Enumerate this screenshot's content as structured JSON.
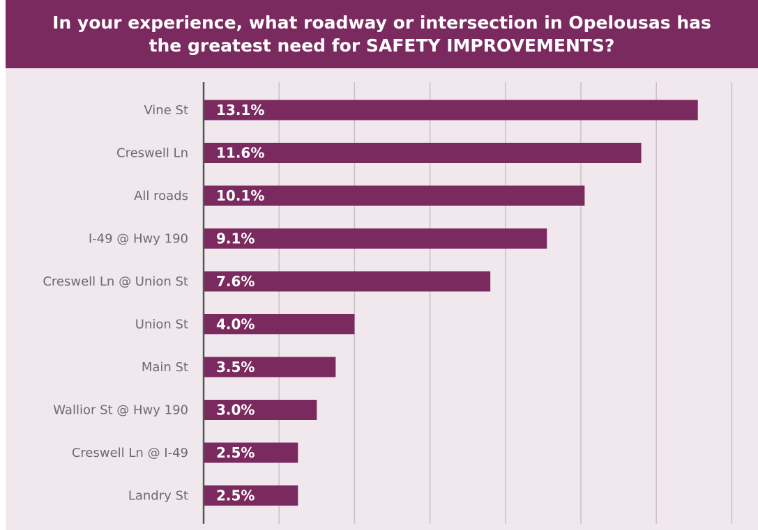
{
  "chart_data": {
    "type": "bar",
    "orientation": "horizontal",
    "title": "In your experience, what roadway or intersection in Opelousas has the greatest need for SAFETY IMPROVEMENTS?",
    "categories": [
      "Vine St",
      "Creswell Ln",
      "All roads",
      "I-49 @ Hwy 190",
      "Creswell Ln @ Union St",
      "Union St",
      "Main St",
      "Wallior St @ Hwy 190",
      "Creswell Ln @ I-49",
      "Landry St"
    ],
    "values": [
      13.1,
      11.6,
      10.1,
      9.1,
      7.6,
      4.0,
      3.5,
      3.0,
      2.5,
      2.5
    ],
    "data_labels": [
      "13.1%",
      "11.6%",
      "10.1%",
      "9.1%",
      "7.6%",
      "4.0%",
      "3.5%",
      "3.0%",
      "2.5%",
      "2.5%"
    ],
    "xlim": [
      0,
      14
    ],
    "grid": true,
    "legend": "none",
    "colors": {
      "bar": "#7a2a5e",
      "banner": "#7a2a5e",
      "background": "#f1e8ee",
      "gridline": "#c9bfc5",
      "axis": "#555555"
    }
  }
}
